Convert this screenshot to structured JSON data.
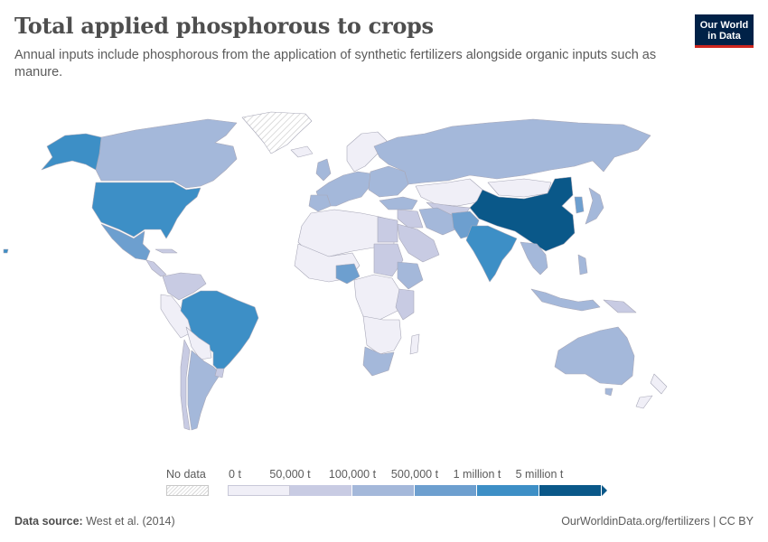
{
  "header": {
    "title": "Total applied phosphorous to crops",
    "subtitle": "Annual inputs include phosphorous from the application of synthetic fertilizers alongside organic inputs such as manure."
  },
  "logo": {
    "line1": "Our World",
    "line2": "in Data",
    "bg": "#002147",
    "accent": "#ce261e"
  },
  "legend": {
    "no_data_label": "No data",
    "labels": [
      "0 t",
      "50,000 t",
      "100,000 t",
      "500,000 t",
      "1 million t",
      "5 million t"
    ],
    "colors": [
      "#f0eff7",
      "#c8cbe3",
      "#a4b8da",
      "#6d9fcf",
      "#3d8fc6",
      "#0a5889"
    ]
  },
  "footer": {
    "source_label": "Data source:",
    "source_value": "West et al. (2014)",
    "url": "OurWorldinData.org/fertilizers | CC BY"
  },
  "map_colors": {
    "no_data": "#e8e8e8",
    "border": "#a8a8b8",
    "level0": "#f0eff7",
    "level1": "#c8cbe3",
    "level2": "#a4b8da",
    "level3": "#6d9fcf",
    "level4": "#3d8fc6",
    "level5": "#0a5889"
  }
}
